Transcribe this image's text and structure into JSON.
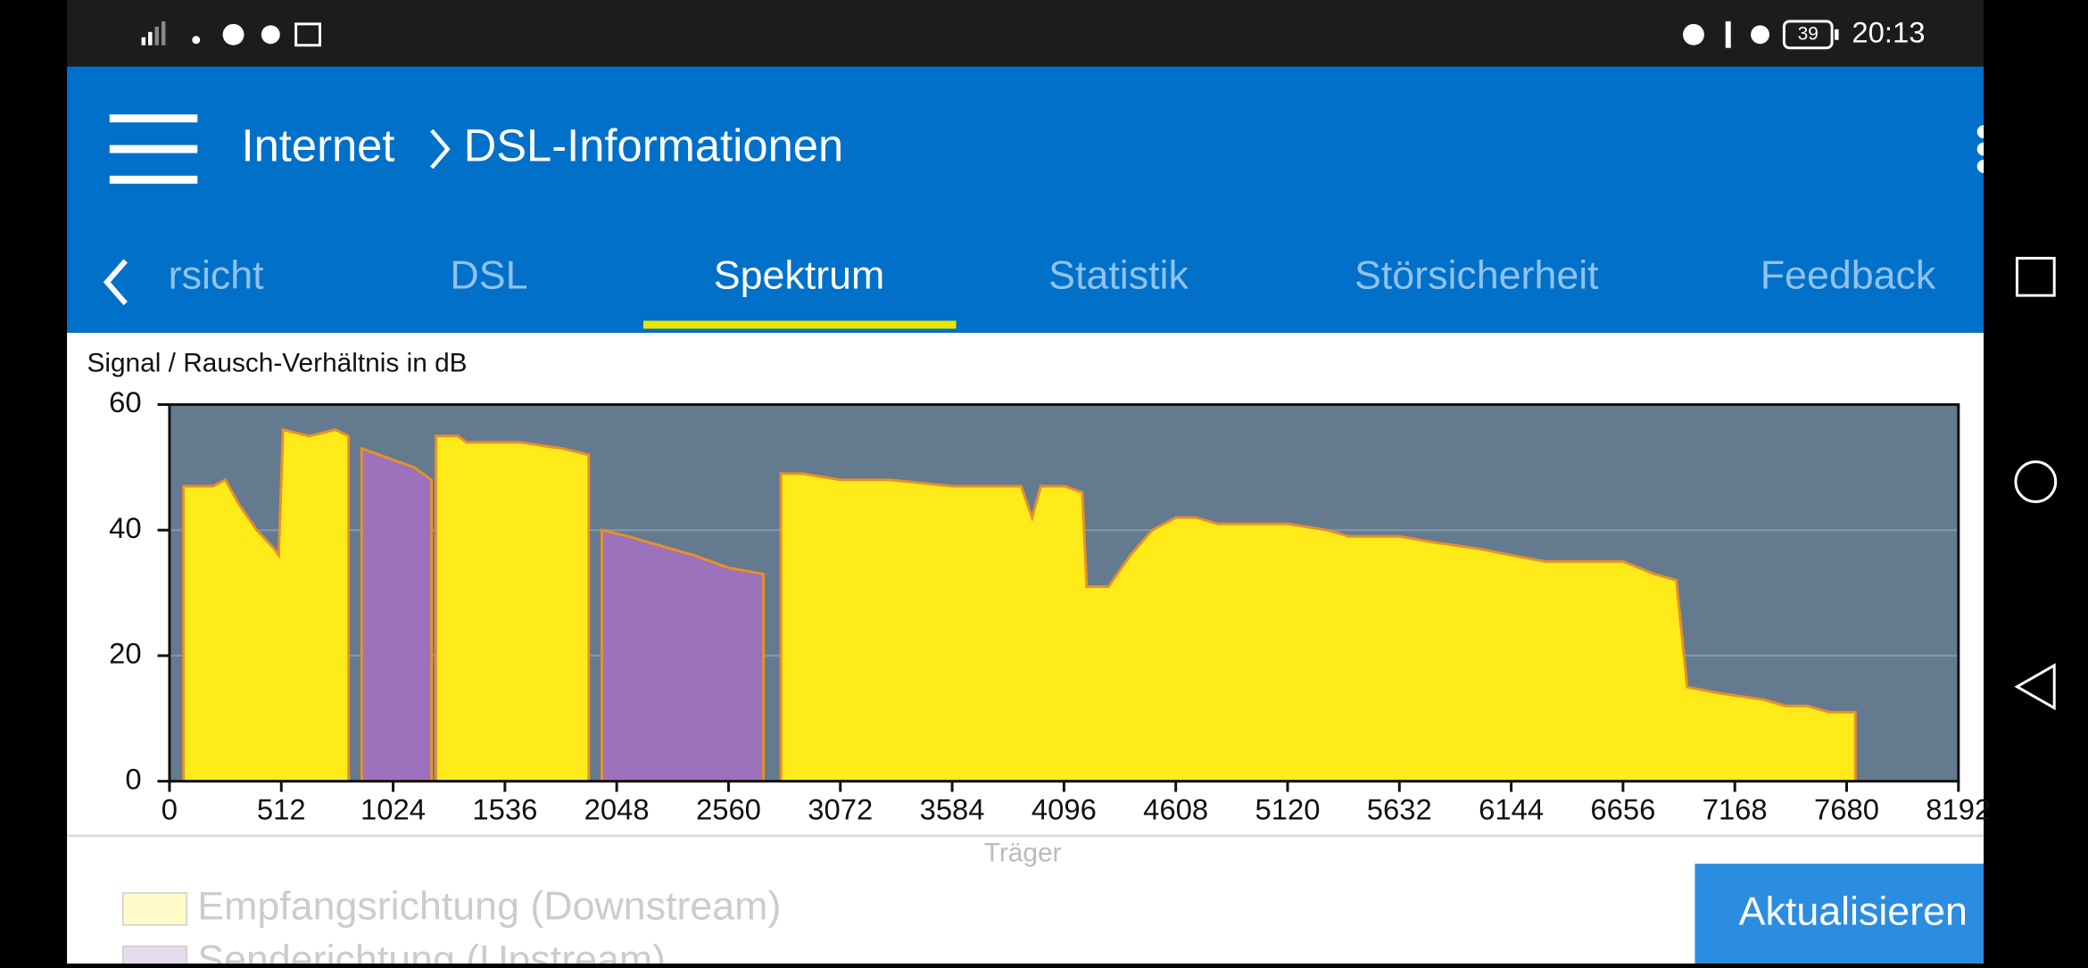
{
  "status_bar": {
    "time": "20:13",
    "battery": "39"
  },
  "app_bar": {
    "breadcrumb": [
      "Internet",
      "DSL-Informationen"
    ]
  },
  "tabs": [
    "rsicht",
    "DSL",
    "Spektrum",
    "Statistik",
    "Störsicherheit",
    "Feedback"
  ],
  "active_tab": "Spektrum",
  "chart_data": {
    "type": "area",
    "ylabel": "Signal / Rausch-Verhältnis in dB",
    "xlabel": "Träger",
    "xlim": [
      0,
      8192
    ],
    "ylim": [
      0,
      60
    ],
    "xticks": [
      0,
      512,
      1024,
      1536,
      2048,
      2560,
      3072,
      3584,
      4096,
      4608,
      5120,
      5632,
      6144,
      6656,
      7168,
      7680,
      8192
    ],
    "yticks": [
      0,
      20,
      40,
      60
    ],
    "grid": true,
    "series": [
      {
        "name": "Empfangsrichtung (Downstream)",
        "color": "#ffeb1a",
        "x": [
          64,
          200,
          256,
          320,
          400,
          480,
          500,
          520,
          640,
          760,
          820,
          1000,
          1220,
          1320,
          1360,
          1600,
          1800,
          1920,
          2300,
          2800,
          2900,
          3072,
          3300,
          3584,
          3900,
          3950,
          3990,
          4100,
          4180,
          4200,
          4300,
          4400,
          4500,
          4608,
          4700,
          4800,
          5120,
          5300,
          5400,
          5632,
          5800,
          6000,
          6144,
          6300,
          6656,
          6800,
          6900,
          6950,
          7100,
          7300,
          7400,
          7500,
          7600,
          7720
        ],
        "values": [
          47,
          47,
          48,
          44,
          40,
          37,
          36,
          56,
          55,
          56,
          55,
          null,
          55,
          55,
          54,
          54,
          53,
          52,
          null,
          49,
          49,
          48,
          48,
          47,
          47,
          42,
          47,
          47,
          46,
          31,
          31,
          36,
          40,
          42,
          42,
          41,
          41,
          40,
          39,
          39,
          38,
          37,
          36,
          35,
          35,
          33,
          32,
          15,
          14,
          13,
          12,
          12,
          11,
          11
        ]
      },
      {
        "name": "Senderichtung (Upstream)",
        "color": "#9b72bb",
        "x": [
          880,
          960,
          1040,
          1120,
          1200,
          1600,
          1980,
          2100,
          2200,
          2400,
          2560,
          2720
        ],
        "values": [
          53,
          52,
          51,
          50,
          48,
          null,
          40,
          39,
          38,
          36,
          34,
          33
        ]
      }
    ]
  },
  "button": "Aktualisieren"
}
